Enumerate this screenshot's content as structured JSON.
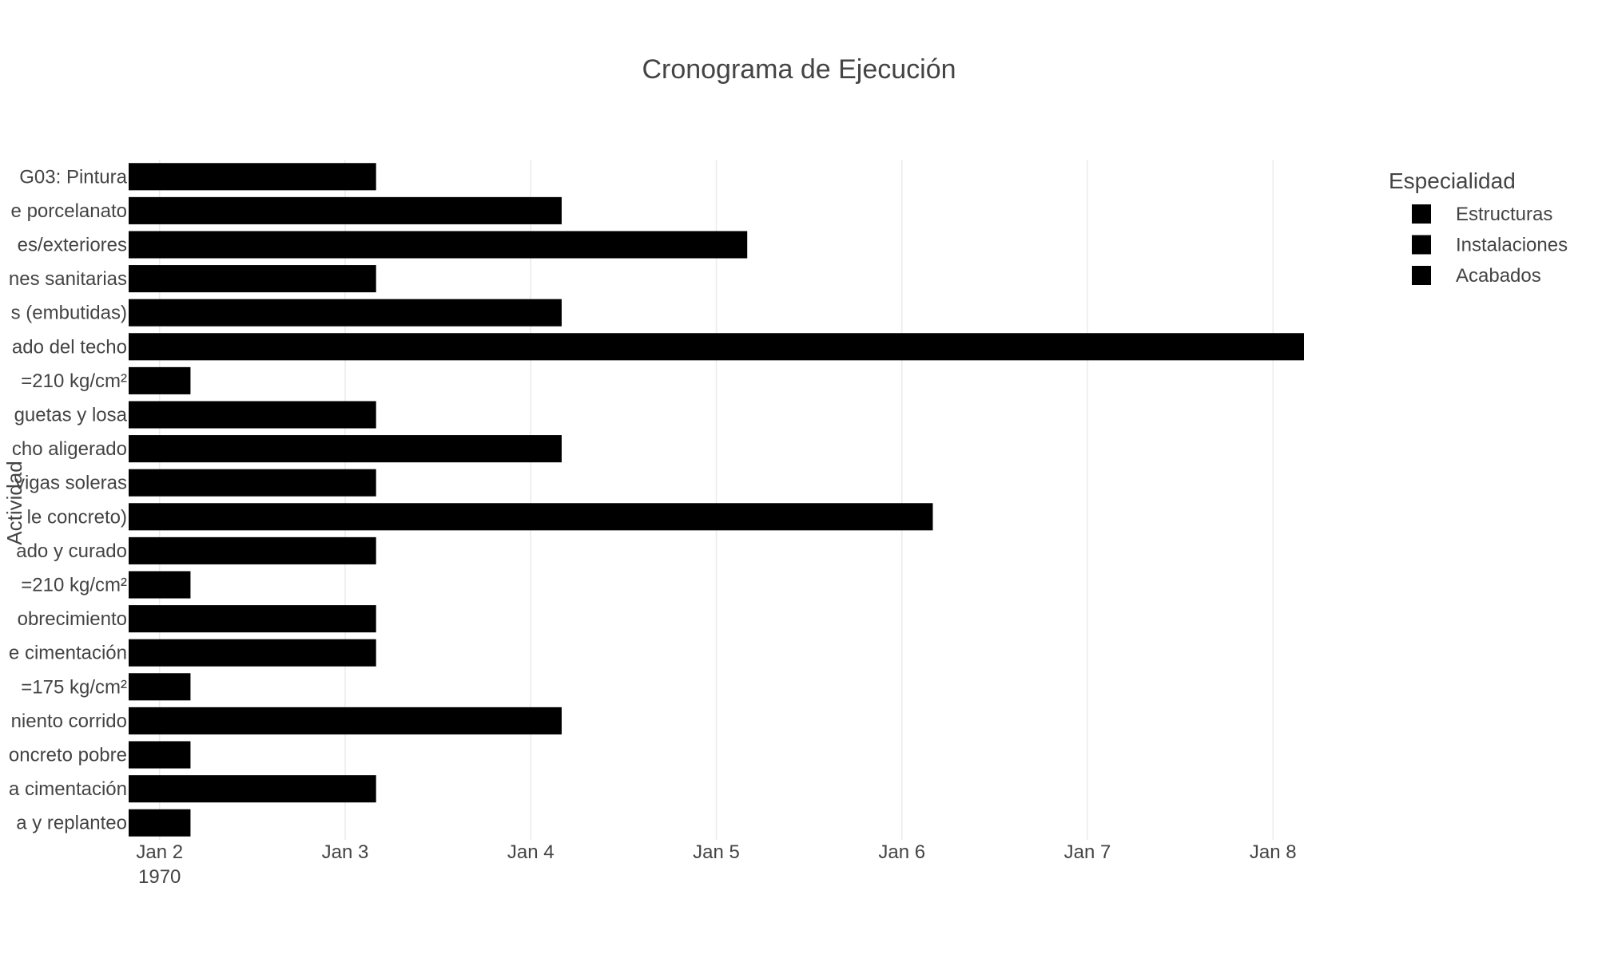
{
  "chart_data": {
    "type": "bar",
    "orientation": "horizontal",
    "title": "Cronograma de Ejecución",
    "ylabel": "Actividad",
    "xlabel": "",
    "x_axis_type": "date",
    "xlim": [
      "1970-01-01 20:00",
      "1970-01-08 04:00"
    ],
    "x_ticks": [
      {
        "value": "1970-01-02",
        "label": "Jan 2",
        "sublabel": "1970"
      },
      {
        "value": "1970-01-03",
        "label": "Jan 3",
        "sublabel": ""
      },
      {
        "value": "1970-01-04",
        "label": "Jan 4",
        "sublabel": ""
      },
      {
        "value": "1970-01-05",
        "label": "Jan 5",
        "sublabel": ""
      },
      {
        "value": "1970-01-06",
        "label": "Jan 6",
        "sublabel": ""
      },
      {
        "value": "1970-01-07",
        "label": "Jan 7",
        "sublabel": ""
      },
      {
        "value": "1970-01-08",
        "label": "Jan 8",
        "sublabel": ""
      }
    ],
    "grid": true,
    "legend": {
      "title": "Especialidad",
      "placement": "top-right",
      "entries": [
        "Estructuras",
        "Instalaciones",
        "Acabados"
      ]
    },
    "bar_color": "#000000",
    "grid_color": "#ebebeb",
    "bars": [
      {
        "label": "a y replanteo",
        "start": "1970-01-01 20:00",
        "end": "1970-01-02 04:00"
      },
      {
        "label": "a cimentación",
        "start": "1970-01-01 20:00",
        "end": "1970-01-03 04:00"
      },
      {
        "label": "oncreto pobre",
        "start": "1970-01-01 20:00",
        "end": "1970-01-02 04:00"
      },
      {
        "label": "niento corrido",
        "start": "1970-01-01 20:00",
        "end": "1970-01-04 04:00"
      },
      {
        "label": "=175 kg/cm²",
        "start": "1970-01-01 20:00",
        "end": "1970-01-02 04:00"
      },
      {
        "label": "e cimentación",
        "start": "1970-01-01 20:00",
        "end": "1970-01-03 04:00"
      },
      {
        "label": "obrecimiento",
        "start": "1970-01-01 20:00",
        "end": "1970-01-03 04:00"
      },
      {
        "label": "=210 kg/cm²",
        "start": "1970-01-01 20:00",
        "end": "1970-01-02 04:00"
      },
      {
        "label": "ado y curado",
        "start": "1970-01-01 20:00",
        "end": "1970-01-03 04:00"
      },
      {
        "label": "le concreto)",
        "start": "1970-01-01 20:00",
        "end": "1970-01-06 04:00"
      },
      {
        "label": "vigas soleras",
        "start": "1970-01-01 20:00",
        "end": "1970-01-03 04:00"
      },
      {
        "label": "cho aligerado",
        "start": "1970-01-01 20:00",
        "end": "1970-01-04 04:00"
      },
      {
        "label": "guetas y losa",
        "start": "1970-01-01 20:00",
        "end": "1970-01-03 04:00"
      },
      {
        "label": "=210 kg/cm²",
        "start": "1970-01-01 20:00",
        "end": "1970-01-02 04:00"
      },
      {
        "label": "ado del techo",
        "start": "1970-01-01 20:00",
        "end": "1970-01-08 04:00"
      },
      {
        "label": "s (embutidas)",
        "start": "1970-01-01 20:00",
        "end": "1970-01-04 04:00"
      },
      {
        "label": "nes sanitarias",
        "start": "1970-01-01 20:00",
        "end": "1970-01-03 04:00"
      },
      {
        "label": "es/exteriores",
        "start": "1970-01-01 20:00",
        "end": "1970-01-05 04:00"
      },
      {
        "label": "e porcelanato",
        "start": "1970-01-01 20:00",
        "end": "1970-01-04 04:00"
      },
      {
        "label": "G03: Pintura",
        "start": "1970-01-01 20:00",
        "end": "1970-01-03 04:00"
      }
    ]
  }
}
